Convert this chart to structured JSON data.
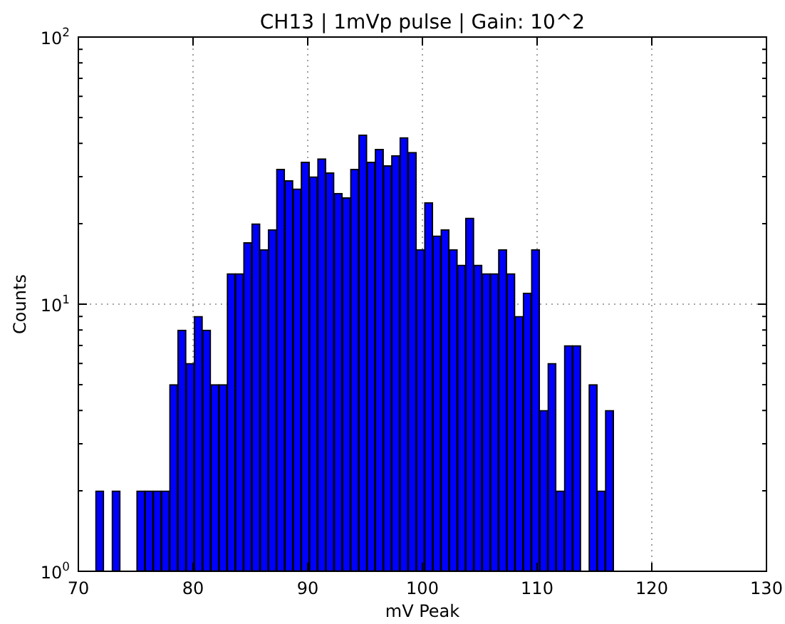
{
  "chart_data": {
    "type": "histogram",
    "title": "CH13 | 1mVp pulse | Gain: 10^2",
    "xlabel": "mV Peak",
    "ylabel": "Counts",
    "color": "#0000ff",
    "log": "y",
    "grid": true,
    "bins": [
      71.5,
      72.22,
      72.93,
      73.65,
      74.37,
      75.09,
      75.8,
      76.52,
      77.24,
      77.95,
      78.67,
      79.39,
      80.1,
      80.82,
      81.54,
      82.26,
      82.97,
      83.69,
      84.41,
      85.12,
      85.84,
      86.56,
      87.27,
      87.99,
      88.71,
      89.43,
      90.14,
      90.86,
      91.58,
      92.29,
      93.01,
      93.73,
      94.44,
      95.16,
      95.88,
      96.6,
      97.31,
      98.03,
      98.75,
      99.46,
      100.18,
      100.9,
      101.61,
      102.33,
      103.05,
      103.77,
      104.48,
      105.2,
      105.92,
      106.63,
      107.35,
      108.07,
      108.78,
      109.5,
      110.22,
      110.94,
      111.65,
      112.37,
      113.09,
      113.8,
      114.52,
      115.24,
      115.95,
      116.67
    ],
    "values": [
      2,
      null,
      2,
      null,
      null,
      2,
      2,
      2,
      2,
      5,
      8,
      6,
      9,
      8,
      5,
      5,
      13,
      13,
      17,
      20,
      16,
      19,
      32,
      29,
      27,
      34,
      30,
      35,
      31,
      26,
      25,
      32,
      43,
      34,
      38,
      33,
      36,
      42,
      37,
      16,
      24,
      18,
      19,
      16,
      14,
      21,
      14,
      13,
      13,
      16,
      13,
      9,
      11,
      16,
      4,
      6,
      2,
      7,
      7,
      null,
      5,
      2,
      4
    ],
    "xlim": [
      70,
      130
    ],
    "xticks": [
      70,
      80,
      90,
      100,
      110,
      120,
      130
    ],
    "ylim": [
      1,
      100
    ],
    "yticks": [
      {
        "value": 1,
        "label": "10$^{0}$"
      },
      {
        "value": 2,
        "label": null
      },
      {
        "value": 3,
        "label": null
      },
      {
        "value": 4,
        "label": null
      },
      {
        "value": 5,
        "label": null
      },
      {
        "value": 6,
        "label": null
      },
      {
        "value": 7,
        "label": null
      },
      {
        "value": 8,
        "label": null
      },
      {
        "value": 9,
        "label": null
      },
      {
        "value": 10,
        "label": "10$^{1}$"
      },
      {
        "value": 20,
        "label": null
      },
      {
        "value": 30,
        "label": null
      },
      {
        "value": 40,
        "label": null
      },
      {
        "value": 50,
        "label": null
      },
      {
        "value": 60,
        "label": null
      },
      {
        "value": 70,
        "label": null
      },
      {
        "value": 80,
        "label": null
      },
      {
        "value": 90,
        "label": null
      },
      {
        "value": 100,
        "label": "10$^{2}$"
      }
    ]
  }
}
